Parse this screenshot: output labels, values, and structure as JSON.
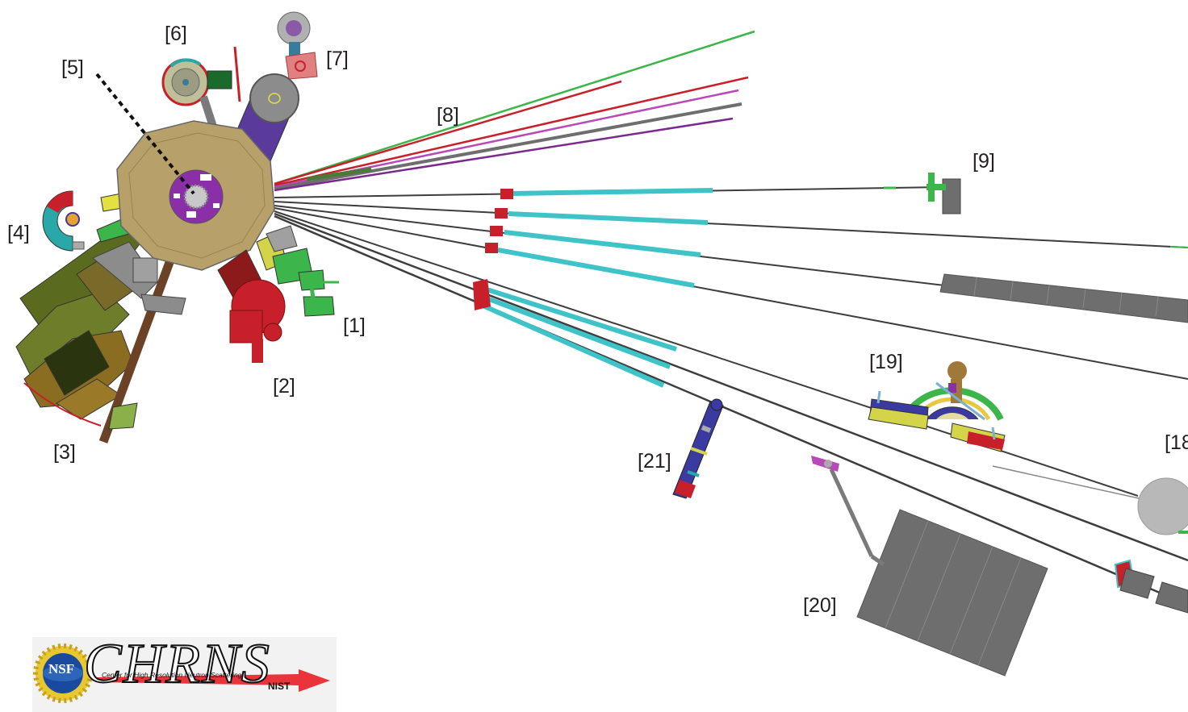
{
  "labels": {
    "l1": "[1]",
    "l2": "[2]",
    "l3": "[3]",
    "l4": "[4]",
    "l5": "[5]",
    "l6": "[6]",
    "l7": "[7]",
    "l8": "[8]",
    "l9": "[9]",
    "l18": "[18]",
    "l19": "[19]",
    "l20": "[20]",
    "l21": "[21]"
  },
  "logo": {
    "nsf": "NSF",
    "brand": "CHRNS",
    "subtitle": "Center for High Resolution Neutron Scattering",
    "nist": "NIST"
  },
  "colors": {
    "reactor": "#b8a06a",
    "core": "#8b2fa8",
    "guide": "#3ec4c8",
    "beamline": "#3d3d3d",
    "shield": "#6e6e6e",
    "shutter": "#c8202a",
    "accent_green": "#3cb54a",
    "arrow": "#e8343a"
  }
}
